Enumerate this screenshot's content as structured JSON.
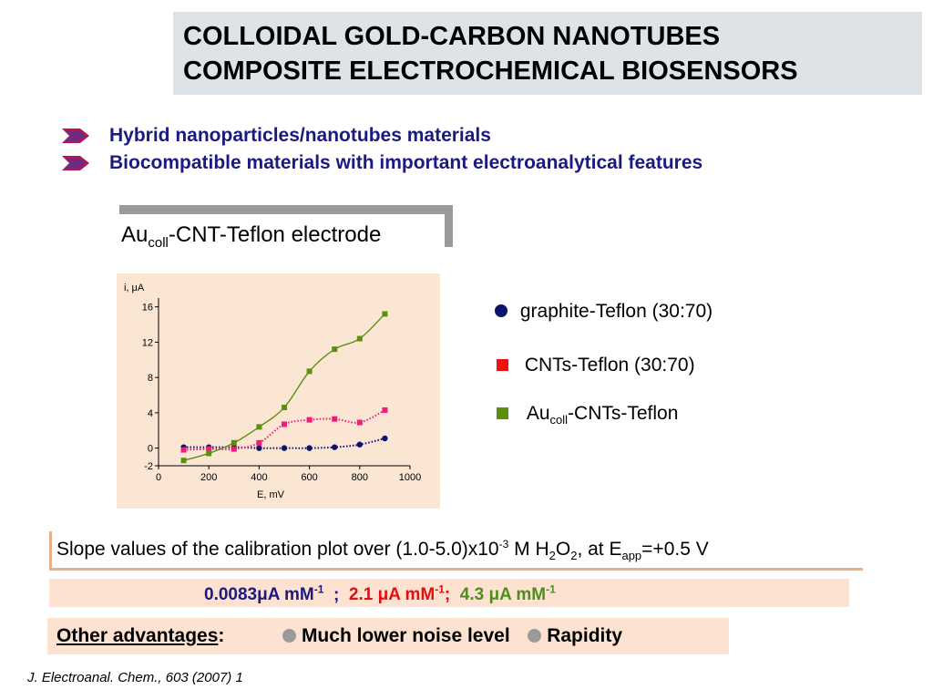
{
  "title": {
    "line1": "COLLOIDAL GOLD-CARBON NANOTUBES",
    "line2": "COMPOSITE ELECTROCHEMICAL BIOSENSORS"
  },
  "bullets": [
    "Hybrid nanoparticles/nanotubes materials",
    "Biocompatible materials with important electroanalytical features"
  ],
  "electrode": {
    "prefix": "Au",
    "sub": "coll",
    "suffix": "-CNT-Teflon electrode"
  },
  "legend": {
    "graphite": "graphite-Teflon (30:70)",
    "cnts": "CNTs-Teflon (30:70)",
    "au_prefix": "Au",
    "au_sub": "coll",
    "au_suffix": "-CNTs-Teflon"
  },
  "slope": {
    "t1": "Slope values of the calibration plot over (1.0-5.0)x10",
    "sup1": "-3",
    "t2": " M H",
    "sub1": "2",
    "t3": "O",
    "sub2": "2",
    "t4": ", at E",
    "sub3": "app",
    "t5": "=+0.5 V"
  },
  "values": {
    "v1": "0.0083μA mM",
    "sep1": "  ;  ",
    "v2": "2.1 μA mM",
    "sep2": ";  ",
    "v3": "4.3 μA mM",
    "exp": "-1"
  },
  "advantages": {
    "label": "Other advantages",
    "colon": ":",
    "item1": "Much lower noise level",
    "item2": "Rapidity"
  },
  "citation": "J. Electroanal. Chem., 603 (2007) 1",
  "colors": {
    "navy": "#1a1a80",
    "graphite": "#0d1470",
    "cnts": "#ee1c7a",
    "au": "#5c8f10",
    "red_value": "#e01010",
    "green_value": "#4d8f1a",
    "legend_red": "#ee1111"
  },
  "chart_data": {
    "type": "line",
    "xlabel": "E, mV",
    "ylabel": "i, μA",
    "xlim": [
      0,
      1000
    ],
    "ylim": [
      -2,
      17
    ],
    "xticks": [
      0,
      200,
      400,
      600,
      800,
      1000
    ],
    "yticks": [
      -2,
      0,
      4,
      8,
      12,
      16
    ],
    "series": [
      {
        "name": "graphite-Teflon (30:70)",
        "marker": "circle",
        "line": "dotted",
        "x": [
          100,
          200,
          300,
          400,
          500,
          600,
          700,
          800,
          900
        ],
        "y": [
          0.1,
          0.1,
          0.1,
          0.0,
          0.0,
          0.0,
          0.1,
          0.4,
          1.1
        ]
      },
      {
        "name": "CNTs-Teflon (30:70)",
        "marker": "square",
        "line": "dotted",
        "x": [
          100,
          200,
          300,
          400,
          500,
          600,
          700,
          800,
          900
        ],
        "y": [
          -0.2,
          -0.1,
          -0.1,
          0.6,
          2.7,
          3.2,
          3.3,
          2.9,
          4.3
        ]
      },
      {
        "name": "Aucoll-CNTs-Teflon",
        "marker": "square",
        "line": "solid",
        "x": [
          100,
          200,
          300,
          400,
          500,
          600,
          700,
          800,
          900
        ],
        "y": [
          -1.4,
          -0.6,
          0.6,
          2.4,
          4.6,
          8.7,
          11.2,
          12.4,
          15.2
        ]
      }
    ]
  }
}
